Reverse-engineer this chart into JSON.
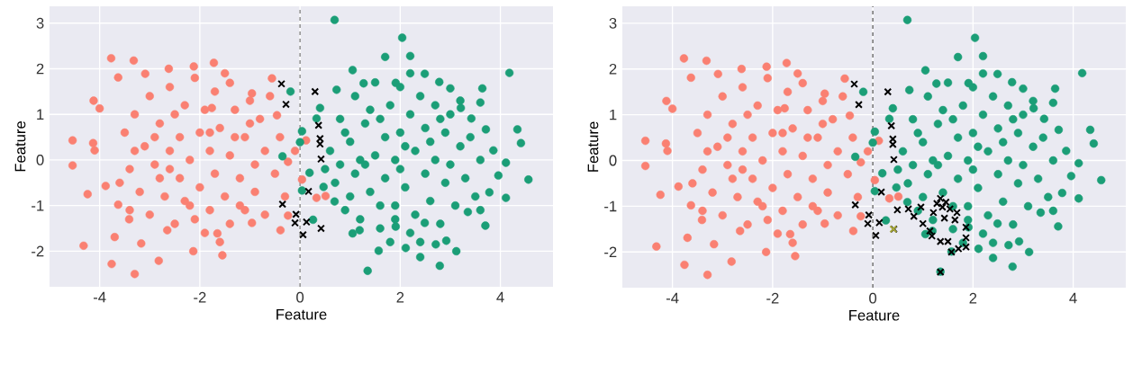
{
  "chart_data": [
    {
      "type": "scatter",
      "xlabel": "Feature",
      "ylabel": "Feature",
      "xlim": [
        -5.0,
        5.05
      ],
      "ylim": [
        -2.78,
        3.37
      ],
      "xticks": [
        -4,
        -2,
        0,
        2,
        4
      ],
      "yticks": [
        -2,
        -1,
        0,
        1,
        2,
        3
      ],
      "grid": true,
      "ref_lines": [
        {
          "axis": "x",
          "value": 0,
          "color": "#808080",
          "line_style": "dashed"
        }
      ],
      "series": [
        {
          "color": "#fa8072",
          "marker": "circle",
          "x": [
            -4.54,
            -4.54,
            -4.32,
            -4.24,
            -4.12,
            -4.0,
            -4.13,
            -4.1,
            -3.88,
            -3.77,
            -3.76,
            -3.63,
            -3.32,
            -3.3,
            -3.17,
            -3.09,
            -2.82,
            -2.62,
            -2.13,
            -2.12,
            -1.72,
            -1.55,
            -0.56,
            -3.63,
            -3.7,
            -3.41,
            -2.65,
            -1.65,
            -0.96,
            -0.39,
            -0.24,
            -0.24,
            0.12,
            0.51,
            0.33,
            0.04,
            -0.1,
            -0.46,
            -0.96,
            -1.4,
            -1.76,
            -3.5,
            -3.4,
            -3.3,
            -3.2,
            -3.1,
            -3.0,
            -3.0,
            -2.9,
            -2.8,
            -2.7,
            -2.6,
            -2.6,
            -2.5,
            -2.4,
            -2.4,
            -2.3,
            -2.2,
            -2.2,
            -2.1,
            -2.0,
            -2.0,
            -1.9,
            -1.9,
            -1.8,
            -1.8,
            -1.7,
            -1.7,
            -1.6,
            -1.5,
            -1.5,
            -1.4,
            -1.4,
            -1.3,
            -1.2,
            -1.1,
            -1.1,
            -1.0,
            -0.9,
            -0.9,
            -0.8,
            -0.7,
            -0.7,
            -0.6,
            -0.5,
            -0.4,
            -0.3,
            -3.6,
            -3.3,
            -2.8,
            -2.5,
            -2.3,
            -1.6,
            -1.3,
            -1.0,
            -2.9,
            -2.1,
            -1.8,
            -1.2,
            -2.6,
            -3.4
          ],
          "values": [
            0.43,
            -0.12,
            -1.88,
            -0.75,
            1.3,
            1.13,
            0.37,
            0.21,
            -0.57,
            2.23,
            -2.28,
            1.81,
            2.18,
            -2.5,
            -1.83,
            1.89,
            -2.21,
            2.0,
            -2.0,
            2.05,
            2.13,
            -2.09,
            1.79,
            -0.98,
            -1.69,
            -1.3,
            -1.54,
            -1.61,
            -1.38,
            -1.54,
            -1.22,
            -0.04,
            0.43,
            -0.79,
            -0.83,
            -0.43,
            0.2,
            0.98,
            1.46,
            1.69,
            1.14,
            0.6,
            -0.2,
            1.0,
            -0.7,
            0.3,
            1.4,
            -1.2,
            -0.1,
            0.8,
            -0.8,
            1.6,
            0.2,
            -1.4,
            0.5,
            -0.4,
            1.2,
            -1.0,
            0.0,
            1.8,
            0.6,
            -0.6,
            -1.6,
            1.1,
            0.2,
            -1.1,
            1.5,
            -0.3,
            0.7,
            -0.8,
            1.9,
            0.1,
            -1.4,
            1.1,
            -0.4,
            0.5,
            -1.1,
            1.3,
            -0.1,
            -0.7,
            0.9,
            0.2,
            -1.2,
            1.4,
            -0.3,
            0.5,
            -0.8,
            -0.5,
            0.2,
            -0.4,
            1.0,
            -0.9,
            -1.8,
            0.5,
            0.8,
            0.5,
            -1.3,
            0.6,
            -1.0,
            -0.2,
            -1.1
          ]
        },
        {
          "color": "#1b9e77",
          "marker": "circle",
          "x": [
            0.69,
            2.04,
            1.7,
            2.2,
            4.18,
            4.34,
            4.41,
            4.56,
            4.11,
            4.11,
            3.7,
            3.12,
            2.79,
            2.4,
            2.11,
            1.35,
            1.57,
            1.05,
            -0.19,
            0.26,
            0.04,
            -0.35,
            1.05,
            2.49,
            2.78,
            3.0,
            3.64,
            3.6,
            3.71,
            3.86,
            3.96,
            3.78,
            3.6,
            2.92,
            2.71,
            0.73,
            0.4,
            0.33,
            0.0,
            0.19,
            0.04,
            0.47,
            0.69,
            1.19,
            1.91,
            2.49,
            3.35,
            3.42,
            3.21,
            1.27,
            1.91,
            0.6,
            0.7,
            0.8,
            0.9,
            1.0,
            1.1,
            1.1,
            1.2,
            1.3,
            1.4,
            1.5,
            1.5,
            1.6,
            1.7,
            1.7,
            1.8,
            1.9,
            1.9,
            2.0,
            2.0,
            2.1,
            2.2,
            2.2,
            2.3,
            2.3,
            2.4,
            2.5,
            2.5,
            2.6,
            2.7,
            2.7,
            2.8,
            2.9,
            2.9,
            3.0,
            3.1,
            3.2,
            3.3,
            3.4,
            3.5,
            1.2,
            1.4,
            1.6,
            1.8,
            2.1,
            2.4,
            2.6,
            3.0,
            1.0,
            0.9,
            2.0,
            1.3,
            2.8,
            3.6,
            2.2,
            1.6,
            0.5,
            0.8,
            3.2,
            1.9
          ],
          "values": [
            3.07,
            2.68,
            2.26,
            2.28,
            1.91,
            0.67,
            0.37,
            -0.43,
            -0.83,
            -0.06,
            -1.44,
            -2.0,
            -2.32,
            -2.13,
            -1.93,
            -2.43,
            -1.99,
            -1.61,
            1.5,
            -1.31,
            0.63,
            0.08,
            1.97,
            1.89,
            1.71,
            1.57,
            1.57,
            1.26,
            0.67,
            0.21,
            -0.34,
            -0.71,
            -1.1,
            -1.77,
            -1.85,
            1.54,
            1.14,
            0.91,
            0.39,
            -0.28,
            -0.67,
            -0.59,
            -0.91,
            -1.54,
            -1.46,
            -1.38,
            -1.14,
            0.91,
            1.14,
            1.68,
            1.69,
            0.2,
            -0.5,
            0.9,
            -1.1,
            0.4,
            1.4,
            -0.3,
            -1.3,
            0.8,
            -0.7,
            0.1,
            1.7,
            -1.5,
            0.5,
            -0.4,
            1.2,
            -1.0,
            0.0,
            1.6,
            0.6,
            -0.6,
            -1.6,
            1.0,
            0.2,
            -1.2,
            1.4,
            -0.3,
            0.7,
            -0.9,
            1.2,
            0.0,
            -1.4,
            0.6,
            -0.5,
            1.0,
            -1.0,
            0.3,
            -0.4,
            0.5,
            -0.8,
            0.0,
            1.1,
            -1.0,
            -1.8,
            0.3,
            -1.8,
            0.4,
            -0.1,
            -0.8,
            0.6,
            -0.2,
            -0.1,
            0.9,
            0.0,
            1.9,
            0.9,
            -0.2,
            -0.1,
            1.3,
            -1.3
          ]
        },
        {
          "color": "#000000",
          "marker": "cross",
          "x": [
            -0.37,
            -0.28,
            0.3,
            0.37,
            0.4,
            0.4,
            0.42,
            0.17,
            -0.35,
            -0.08,
            -0.1,
            0.13,
            0.42,
            0.06
          ],
          "values": [
            1.67,
            1.22,
            1.5,
            0.76,
            0.47,
            0.35,
            0.02,
            -0.69,
            -0.97,
            -1.19,
            -1.38,
            -1.36,
            -1.5,
            -1.64
          ]
        }
      ]
    },
    {
      "type": "scatter",
      "xlabel": "Feature",
      "ylabel": "Feature",
      "xlim": [
        -5.0,
        5.05
      ],
      "ylim": [
        -2.78,
        3.37
      ],
      "xticks": [
        -4,
        -2,
        0,
        2,
        4
      ],
      "yticks": [
        -2,
        -1,
        0,
        1,
        2,
        3
      ],
      "grid": true,
      "ref_lines": [
        {
          "axis": "x",
          "value": 0,
          "color": "#606060",
          "line_style": "dashed"
        }
      ],
      "series": [
        {
          "color": "#fa8072",
          "marker": "circle",
          "x": [
            -4.54,
            -4.54,
            -4.32,
            -4.24,
            -4.12,
            -4.0,
            -4.13,
            -4.1,
            -3.88,
            -3.77,
            -3.76,
            -3.63,
            -3.32,
            -3.3,
            -3.17,
            -3.09,
            -2.82,
            -2.62,
            -2.13,
            -2.12,
            -1.72,
            -1.55,
            -0.56,
            -3.63,
            -3.7,
            -3.41,
            -2.65,
            -1.65,
            -0.96,
            -0.39,
            -0.24,
            -0.24,
            0.12,
            0.51,
            0.33,
            0.04,
            -0.1,
            -0.46,
            -0.96,
            -1.4,
            -1.76,
            -3.5,
            -3.4,
            -3.3,
            -3.2,
            -3.1,
            -3.0,
            -3.0,
            -2.9,
            -2.8,
            -2.7,
            -2.6,
            -2.6,
            -2.5,
            -2.4,
            -2.4,
            -2.3,
            -2.2,
            -2.2,
            -2.1,
            -2.0,
            -2.0,
            -1.9,
            -1.9,
            -1.8,
            -1.8,
            -1.7,
            -1.7,
            -1.6,
            -1.5,
            -1.5,
            -1.4,
            -1.4,
            -1.3,
            -1.2,
            -1.1,
            -1.1,
            -1.0,
            -0.9,
            -0.9,
            -0.8,
            -0.7,
            -0.7,
            -0.6,
            -0.5,
            -0.4,
            -0.3,
            -3.6,
            -3.3,
            -2.8,
            -2.5,
            -2.3,
            -1.6,
            -1.3,
            -1.0,
            -2.9,
            -2.1,
            -1.8,
            -1.2,
            -2.6,
            -3.4
          ],
          "values": [
            0.43,
            -0.12,
            -1.88,
            -0.75,
            1.3,
            1.13,
            0.37,
            0.21,
            -0.57,
            2.23,
            -2.28,
            1.81,
            2.18,
            -2.5,
            -1.83,
            1.89,
            -2.21,
            2.0,
            -2.0,
            2.05,
            2.13,
            -2.09,
            1.79,
            -0.98,
            -1.69,
            -1.3,
            -1.54,
            -1.61,
            -1.38,
            -1.54,
            -1.22,
            -0.04,
            0.43,
            -0.79,
            -0.83,
            -0.43,
            0.2,
            0.98,
            1.46,
            1.69,
            1.14,
            0.6,
            -0.2,
            1.0,
            -0.7,
            0.3,
            1.4,
            -1.2,
            -0.1,
            0.8,
            -0.8,
            1.6,
            0.2,
            -1.4,
            0.5,
            -0.4,
            1.2,
            -1.0,
            0.0,
            1.8,
            0.6,
            -0.6,
            -1.6,
            1.1,
            0.2,
            -1.1,
            1.5,
            -0.3,
            0.7,
            -0.8,
            1.9,
            0.1,
            -1.4,
            1.1,
            -0.4,
            0.5,
            -1.1,
            1.3,
            -0.1,
            -0.7,
            0.9,
            0.2,
            -1.2,
            1.4,
            -0.3,
            0.5,
            -0.8,
            -0.5,
            0.2,
            -0.4,
            1.0,
            -0.9,
            -1.8,
            0.5,
            0.8,
            0.5,
            -1.3,
            0.6,
            -1.0,
            -0.2,
            -1.1
          ]
        },
        {
          "color": "#1b9e77",
          "marker": "circle",
          "x": [
            0.69,
            2.04,
            1.7,
            2.2,
            4.18,
            4.34,
            4.41,
            4.56,
            4.11,
            4.11,
            3.7,
            3.12,
            2.79,
            2.4,
            2.11,
            1.35,
            1.57,
            1.05,
            -0.19,
            0.26,
            0.04,
            -0.35,
            1.05,
            2.49,
            2.78,
            3.0,
            3.64,
            3.6,
            3.71,
            3.86,
            3.96,
            3.78,
            3.6,
            2.92,
            2.71,
            0.73,
            0.4,
            0.33,
            0.0,
            0.19,
            0.04,
            0.47,
            0.69,
            1.19,
            1.91,
            2.49,
            3.35,
            3.42,
            3.21,
            1.27,
            1.91,
            0.6,
            0.7,
            0.8,
            0.9,
            1.0,
            1.1,
            1.1,
            1.2,
            1.3,
            1.4,
            1.5,
            1.5,
            1.6,
            1.7,
            1.7,
            1.8,
            1.9,
            1.9,
            2.0,
            2.0,
            2.1,
            2.2,
            2.2,
            2.3,
            2.3,
            2.4,
            2.5,
            2.5,
            2.6,
            2.7,
            2.7,
            2.8,
            2.9,
            2.9,
            3.0,
            3.1,
            3.2,
            3.3,
            3.4,
            3.5,
            1.2,
            1.4,
            1.6,
            1.8,
            2.1,
            2.4,
            2.6,
            3.0,
            1.0,
            0.9,
            2.0,
            1.3,
            2.8,
            3.6,
            2.2,
            1.6,
            0.5,
            0.8,
            3.2,
            1.9
          ],
          "values": [
            3.07,
            2.68,
            2.26,
            2.28,
            1.91,
            0.67,
            0.37,
            -0.43,
            -0.83,
            -0.06,
            -1.44,
            -2.0,
            -2.32,
            -2.13,
            -1.93,
            -2.43,
            -1.99,
            -1.61,
            1.5,
            -1.31,
            0.63,
            0.08,
            1.97,
            1.89,
            1.71,
            1.57,
            1.57,
            1.26,
            0.67,
            0.21,
            -0.34,
            -0.71,
            -1.1,
            -1.77,
            -1.85,
            1.54,
            1.14,
            0.91,
            0.39,
            -0.28,
            -0.67,
            -0.59,
            -0.91,
            -1.54,
            -1.46,
            -1.38,
            -1.14,
            0.91,
            1.14,
            1.68,
            1.69,
            0.2,
            -0.5,
            0.9,
            -1.1,
            0.4,
            1.4,
            -0.3,
            -1.3,
            0.8,
            -0.7,
            0.1,
            1.7,
            -1.5,
            0.5,
            -0.4,
            1.2,
            -1.0,
            0.0,
            1.6,
            0.6,
            -0.6,
            -1.6,
            1.0,
            0.2,
            -1.2,
            1.4,
            -0.3,
            0.7,
            -0.9,
            1.2,
            0.0,
            -1.4,
            0.6,
            -0.5,
            1.0,
            -1.0,
            0.3,
            -0.4,
            0.5,
            -0.8,
            0.0,
            1.1,
            -1.0,
            -1.8,
            0.3,
            -1.8,
            0.4,
            -0.1,
            -0.8,
            0.6,
            -0.2,
            -0.1,
            0.9,
            0.0,
            1.9,
            0.9,
            -0.2,
            -0.1,
            1.3,
            -1.3
          ]
        },
        {
          "color": "#000000",
          "marker": "cross",
          "x": [
            -0.37,
            -0.28,
            0.3,
            0.37,
            0.4,
            0.4,
            0.42,
            0.17,
            -0.35,
            -0.08,
            -0.1,
            0.13,
            0.42,
            0.06,
            0.49,
            0.71,
            0.82,
            0.96,
            1.0,
            1.14,
            1.18,
            1.21,
            1.28,
            1.35,
            1.39,
            1.35,
            1.43,
            1.5,
            1.54,
            1.57,
            1.64,
            1.68,
            1.71,
            1.86,
            1.86,
            1.86,
            1.35,
            1.46
          ],
          "values": [
            1.67,
            1.22,
            1.5,
            0.76,
            0.47,
            0.35,
            0.02,
            -0.69,
            -0.97,
            -1.19,
            -1.38,
            -1.36,
            -1.5,
            -1.64,
            -1.08,
            -1.06,
            -1.22,
            -1.02,
            -1.38,
            -1.54,
            -1.65,
            -1.14,
            -0.94,
            -0.83,
            -1.02,
            -1.77,
            -1.26,
            -1.77,
            -1.06,
            -2.0,
            -1.3,
            -1.14,
            -1.93,
            -1.46,
            -1.69,
            -1.89,
            -2.44,
            -0.91
          ]
        },
        {
          "color": "#a8a83a",
          "marker": "cross",
          "x": [
            0.41
          ],
          "values": [
            -1.5
          ]
        }
      ]
    }
  ]
}
